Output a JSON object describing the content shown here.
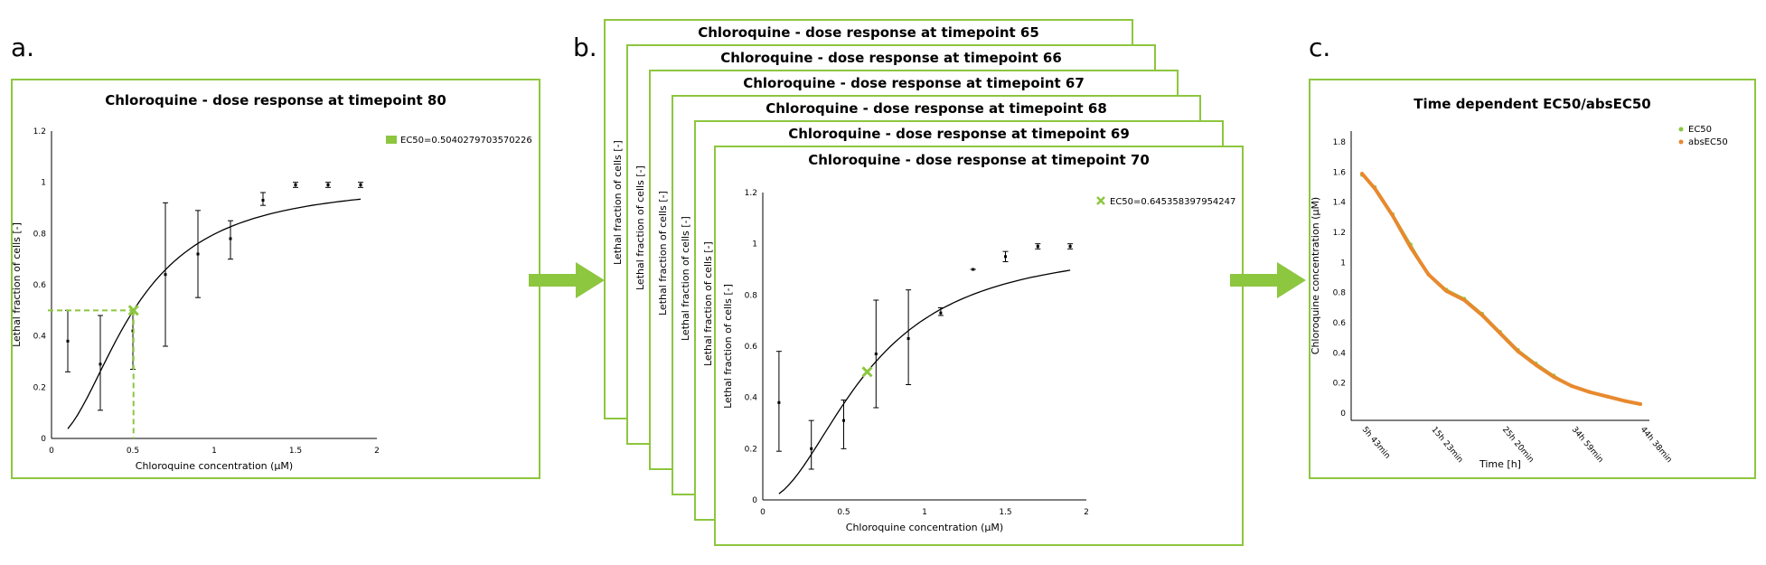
{
  "labels": {
    "a": "a.",
    "b": "b.",
    "c": "c."
  },
  "colors": {
    "green": "#8dc63f",
    "orange": "#e8892e",
    "curve": "#000000"
  },
  "panel_a": {
    "title": "Chloroquine - dose response at timepoint 80",
    "legend": "EC50=0.5040279703570226"
  },
  "panel_b": {
    "stack_titles": [
      "Chloroquine - dose response at timepoint 65",
      "Chloroquine - dose response at timepoint 66",
      "Chloroquine - dose response at timepoint 67",
      "Chloroquine - dose response at timepoint 68",
      "Chloroquine - dose response at timepoint 69"
    ],
    "stack_ylabel": "Lethal fraction of cells [-]",
    "title": "Chloroquine - dose response at timepoint 70",
    "legend": "EC50=0.645358397954247"
  },
  "panel_c": {
    "title": "Time dependent EC50/absEC50"
  },
  "chart_data": [
    {
      "type": "scatter",
      "title": "Chloroquine - dose response at timepoint 80",
      "xlabel": "Chloroquine concentration (μM)",
      "ylabel": "Lethal fraction of cells [-]",
      "xlim": [
        0,
        2
      ],
      "ylim": [
        0,
        1.2
      ],
      "xticks": [
        "0",
        "0.5",
        "1",
        "1.5",
        "2"
      ],
      "yticks": [
        "0",
        "0.2",
        "0.4",
        "0.6",
        "0.8",
        "1",
        "1.2"
      ],
      "legend_position": "top-right",
      "ec50": 0.5040279703570226,
      "fit": {
        "bottom": 0.0,
        "top": 1.0,
        "ec50": 0.504,
        "hill": 2.0
      },
      "points": [
        {
          "x": 0.1,
          "y": 0.38,
          "lo": 0.26,
          "hi": 0.5
        },
        {
          "x": 0.3,
          "y": 0.29,
          "lo": 0.11,
          "hi": 0.48
        },
        {
          "x": 0.5,
          "y": 0.42,
          "lo": 0.27,
          "hi": 0.5
        },
        {
          "x": 0.7,
          "y": 0.64,
          "lo": 0.36,
          "hi": 0.92
        },
        {
          "x": 0.9,
          "y": 0.72,
          "lo": 0.55,
          "hi": 0.89
        },
        {
          "x": 1.1,
          "y": 0.78,
          "lo": 0.7,
          "hi": 0.85
        },
        {
          "x": 1.3,
          "y": 0.93,
          "lo": 0.91,
          "hi": 0.96
        },
        {
          "x": 1.5,
          "y": 0.99,
          "lo": 0.98,
          "hi": 1.0
        },
        {
          "x": 1.7,
          "y": 0.99,
          "lo": 0.98,
          "hi": 1.0
        },
        {
          "x": 1.9,
          "y": 0.99,
          "lo": 0.98,
          "hi": 1.0
        }
      ]
    },
    {
      "type": "scatter",
      "title": "Chloroquine - dose response at timepoint 70",
      "xlabel": "Chloroquine concentration (μM)",
      "ylabel": "Lethal fraction of cells [-]",
      "xlim": [
        0,
        2
      ],
      "ylim": [
        0,
        1.2
      ],
      "xticks": [
        "0",
        "0.5",
        "1",
        "1.5",
        "2"
      ],
      "yticks": [
        "0",
        "0.2",
        "0.4",
        "0.6",
        "0.8",
        "1",
        "1.2"
      ],
      "legend_position": "top-right",
      "ec50": 0.645358397954247,
      "fit": {
        "bottom": 0.0,
        "top": 1.0,
        "ec50": 0.645,
        "hill": 2.0
      },
      "points": [
        {
          "x": 0.1,
          "y": 0.38,
          "lo": 0.19,
          "hi": 0.58
        },
        {
          "x": 0.3,
          "y": 0.2,
          "lo": 0.12,
          "hi": 0.31
        },
        {
          "x": 0.5,
          "y": 0.31,
          "lo": 0.2,
          "hi": 0.39
        },
        {
          "x": 0.7,
          "y": 0.57,
          "lo": 0.36,
          "hi": 0.78
        },
        {
          "x": 0.9,
          "y": 0.63,
          "lo": 0.45,
          "hi": 0.82
        },
        {
          "x": 1.1,
          "y": 0.73,
          "lo": 0.72,
          "hi": 0.75
        },
        {
          "x": 1.3,
          "y": 0.9,
          "lo": 0.9,
          "hi": 0.9
        },
        {
          "x": 1.5,
          "y": 0.95,
          "lo": 0.93,
          "hi": 0.97
        },
        {
          "x": 1.7,
          "y": 0.99,
          "lo": 0.98,
          "hi": 1.0
        },
        {
          "x": 1.9,
          "y": 0.99,
          "lo": 0.98,
          "hi": 1.0
        }
      ]
    },
    {
      "type": "scatter",
      "title": "Time dependent EC50/absEC50",
      "xlabel": "Time [h]",
      "ylabel": "Chloroquine concentration (μM)",
      "ylim": [
        0,
        1.8
      ],
      "yticks": [
        "0",
        "0.2",
        "0.4",
        "0.6",
        "0.8",
        "1",
        "1.2",
        "1.4",
        "1.6",
        "1.8"
      ],
      "xticks": [
        "5h 43min",
        "15h 23min",
        "25h 20min",
        "34h 59min",
        "44h 38min"
      ],
      "legend_position": "top-right",
      "series": [
        {
          "name": "EC50",
          "x": [
            5.7,
            7.5,
            10,
            12.5,
            15,
            17.5,
            20,
            22.5,
            25,
            27.5,
            30,
            32.5,
            35,
            37.5,
            40,
            42.5,
            44.6
          ],
          "y": [
            1.58,
            1.5,
            1.32,
            1.12,
            0.92,
            0.82,
            0.76,
            0.66,
            0.54,
            0.42,
            0.33,
            0.25,
            0.18,
            0.14,
            0.11,
            0.08,
            0.06
          ]
        },
        {
          "name": "absEC50",
          "x": [
            5.7,
            7.5,
            10,
            12.5,
            15,
            17.5,
            20,
            22.5,
            25,
            27.5,
            30,
            32.5,
            35,
            37.5,
            40,
            42.5,
            44.6
          ],
          "y": [
            1.59,
            1.49,
            1.31,
            1.1,
            0.92,
            0.81,
            0.75,
            0.65,
            0.53,
            0.41,
            0.32,
            0.24,
            0.18,
            0.14,
            0.11,
            0.08,
            0.06
          ]
        }
      ]
    }
  ]
}
